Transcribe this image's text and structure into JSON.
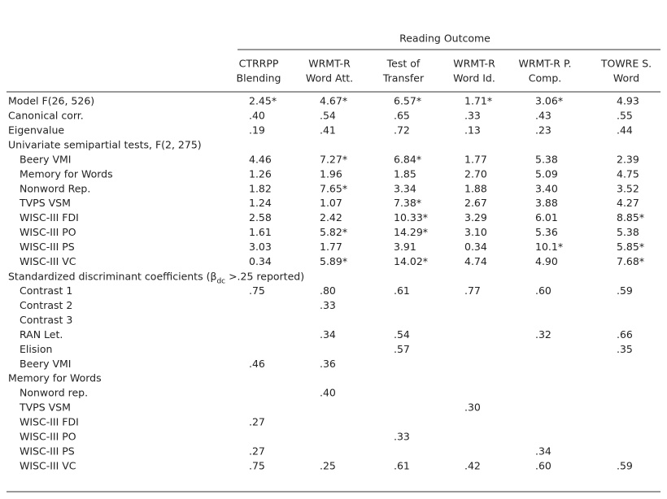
{
  "table": {
    "spanner": "Reading Outcome",
    "columns": [
      [
        "CTRRPP",
        "Blending"
      ],
      [
        "WRMT-R",
        "Word Att."
      ],
      [
        "Test of",
        "Transfer"
      ],
      [
        "WRMT-R",
        "Word Id."
      ],
      [
        "WRMT-R P.",
        "Comp."
      ],
      [
        "TOWRE S.",
        "Word"
      ]
    ],
    "rows": [
      {
        "label": "Model F(26, 526)",
        "cells": [
          "2.45*",
          "4.67*",
          "6.57*",
          "1.71*",
          "3.06*",
          "4.93"
        ]
      },
      {
        "label": "Canonical corr.",
        "cells": [
          ".40",
          ".54",
          ".65",
          ".33",
          ".43",
          ".55"
        ]
      },
      {
        "label": "Eigenvalue",
        "cells": [
          ".19",
          ".41",
          ".72",
          ".13",
          ".23",
          ".44"
        ]
      },
      {
        "label": "Univariate semipartial tests, F(2, 275)",
        "rows": [
          {
            "label": "Beery VMI",
            "cells": [
              "4.46",
              "7.27*",
              "6.84*",
              "1.77",
              "5.38",
              "2.39"
            ]
          },
          {
            "label": "Memory for Words",
            "cells": [
              "1.26",
              "1.96",
              "1.85",
              "2.70",
              "5.09",
              "4.75"
            ]
          },
          {
            "label": "Nonword Rep.",
            "cells": [
              "1.82",
              "7.65*",
              "3.34",
              "1.88",
              "3.40",
              "3.52"
            ]
          },
          {
            "label": "TVPS VSM",
            "cells": [
              "1.24",
              "1.07",
              "7.38*",
              "2.67",
              "3.88",
              "4.27"
            ]
          },
          {
            "label": "WISC-III FDI",
            "cells": [
              "2.58",
              "2.42",
              "10.33*",
              "3.29",
              "6.01",
              "8.85*"
            ]
          },
          {
            "label": "WISC-III PO",
            "cells": [
              "1.61",
              "5.82*",
              "14.29*",
              "3.10",
              "5.36",
              "5.38"
            ]
          },
          {
            "label": "WISC-III PS",
            "cells": [
              "3.03",
              "1.77",
              "3.91",
              "0.34",
              "10.1*",
              "5.85*"
            ]
          },
          {
            "label": "WISC-III VC",
            "cells": [
              "0.34",
              "5.89*",
              "14.02*",
              "4.74",
              "4.90",
              "7.68*"
            ]
          }
        ]
      },
      {
        "label_parts": [
          "Standardized discriminant coefficients (β",
          "dc",
          " >.25 reported)"
        ],
        "rows": [
          {
            "label": "Contrast 1",
            "cells": [
              ".75",
              ".80",
              ".61",
              ".77",
              ".60",
              ".59"
            ]
          },
          {
            "label": "Contrast 2",
            "cells": [
              null,
              ".33",
              null,
              null,
              null,
              null
            ]
          },
          {
            "label": "Contrast 3",
            "cells": [
              null,
              null,
              null,
              null,
              null,
              null
            ]
          },
          {
            "label": "RAN Let.",
            "cells": [
              null,
              ".34",
              ".54",
              null,
              ".32",
              ".66"
            ]
          },
          {
            "label": "Elision",
            "cells": [
              null,
              null,
              ".57",
              null,
              null,
              ".35"
            ]
          },
          {
            "label": "Beery VMI",
            "cells": [
              ".46",
              ".36",
              null,
              null,
              null,
              null
            ]
          }
        ]
      },
      {
        "label": "Memory for Words",
        "rows": [
          {
            "label": "Nonword rep.",
            "cells": [
              null,
              ".40",
              null,
              null,
              null,
              null
            ]
          },
          {
            "label": "TVPS VSM",
            "cells": [
              null,
              null,
              null,
              ".30",
              null,
              null
            ]
          },
          {
            "label": "WISC-III FDI",
            "cells": [
              ".27",
              null,
              null,
              null,
              null,
              null
            ]
          },
          {
            "label": "WISC-III PO",
            "cells": [
              null,
              null,
              ".33",
              null,
              null,
              null
            ]
          },
          {
            "label": "WISC-III PS",
            "cells": [
              ".27",
              null,
              null,
              null,
              ".34",
              null
            ]
          },
          {
            "label": "WISC-III VC",
            "cells": [
              ".75",
              ".25",
              ".61",
              ".42",
              ".60",
              ".59"
            ]
          }
        ]
      }
    ]
  }
}
